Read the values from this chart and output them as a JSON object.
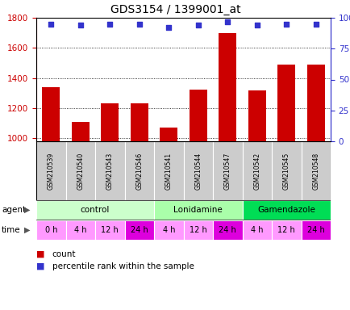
{
  "title": "GDS3154 / 1399001_at",
  "samples": [
    "GSM210539",
    "GSM210540",
    "GSM210543",
    "GSM210546",
    "GSM210541",
    "GSM210544",
    "GSM210547",
    "GSM210542",
    "GSM210545",
    "GSM210548"
  ],
  "count_values": [
    1340,
    1110,
    1230,
    1230,
    1070,
    1325,
    1700,
    1320,
    1490,
    1490
  ],
  "percentile_values": [
    95,
    94,
    95,
    95,
    92,
    94,
    97,
    94,
    95,
    95
  ],
  "ylim_left": [
    980,
    1800
  ],
  "ylim_right": [
    0,
    100
  ],
  "yticks_left": [
    1000,
    1200,
    1400,
    1600,
    1800
  ],
  "yticks_right": [
    0,
    25,
    50,
    75,
    100
  ],
  "bar_color": "#cc0000",
  "dot_color": "#3333cc",
  "agent_groups": [
    {
      "label": "control",
      "start": 0,
      "end": 4,
      "color": "#ccffcc"
    },
    {
      "label": "Lonidamine",
      "start": 4,
      "end": 7,
      "color": "#aaffaa"
    },
    {
      "label": "Gamendazole",
      "start": 7,
      "end": 10,
      "color": "#00dd55"
    }
  ],
  "time_labels": [
    "0 h",
    "4 h",
    "12 h",
    "24 h",
    "4 h",
    "12 h",
    "24 h",
    "4 h",
    "12 h",
    "24 h"
  ],
  "time_colors": [
    "#ff99ff",
    "#ff99ff",
    "#ff99ff",
    "#dd00dd",
    "#ff99ff",
    "#ff99ff",
    "#dd00dd",
    "#ff99ff",
    "#ff99ff",
    "#dd00dd"
  ],
  "gsm_bg_color": "#cccccc",
  "background_color": "#ffffff",
  "tick_label_color_left": "#cc0000",
  "tick_label_color_right": "#3333cc",
  "legend_count_color": "#cc0000",
  "legend_pct_color": "#3333cc"
}
